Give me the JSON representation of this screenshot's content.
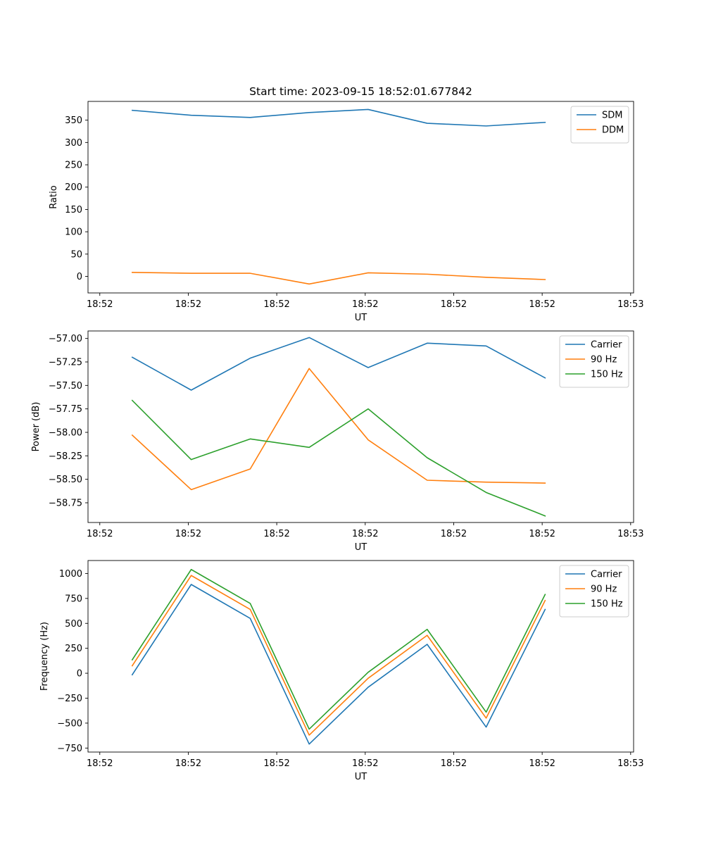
{
  "chart_data": [
    {
      "type": "line",
      "title": "Start time: 2023-09-15 18:52:01.677842",
      "xlabel": "UT",
      "ylabel": "Ratio",
      "xlim": [
        0,
        9.25
      ],
      "ylim": [
        -37,
        392
      ],
      "x": [
        0.75,
        1.75,
        2.75,
        3.75,
        4.75,
        5.75,
        6.75,
        7.75
      ],
      "xticks": [
        0.2,
        1.7,
        3.2,
        4.7,
        6.2,
        7.7,
        9.2
      ],
      "xticklabels": [
        "18:52",
        "18:52",
        "18:52",
        "18:52",
        "18:52",
        "18:52",
        "18:53"
      ],
      "yticks": [
        0,
        50,
        100,
        150,
        200,
        250,
        300,
        350
      ],
      "yticklabels": [
        "0",
        "50",
        "100",
        "150",
        "200",
        "250",
        "300",
        "350"
      ],
      "legend_position": "top-right",
      "series": [
        {
          "name": "SDM",
          "color": "#1f77b4",
          "values": [
            372,
            361,
            356,
            367,
            374,
            343,
            337,
            345
          ]
        },
        {
          "name": "DDM",
          "color": "#ff7f0e",
          "values": [
            9,
            7,
            7,
            -17,
            8,
            5,
            -2,
            -7
          ]
        }
      ]
    },
    {
      "type": "line",
      "title": "",
      "xlabel": "UT",
      "ylabel": "Power (dB)",
      "xlim": [
        0,
        9.25
      ],
      "ylim": [
        -58.96,
        -56.92
      ],
      "x": [
        0.75,
        1.75,
        2.75,
        3.75,
        4.75,
        5.75,
        6.75,
        7.75
      ],
      "xticks": [
        0.2,
        1.7,
        3.2,
        4.7,
        6.2,
        7.7,
        9.2
      ],
      "xticklabels": [
        "18:52",
        "18:52",
        "18:52",
        "18:52",
        "18:52",
        "18:52",
        "18:53"
      ],
      "yticks": [
        -57.0,
        -57.25,
        -57.5,
        -57.75,
        -58.0,
        -58.25,
        -58.5,
        -58.75
      ],
      "yticklabels": [
        "−57.00",
        "−57.25",
        "−57.50",
        "−57.75",
        "−58.00",
        "−58.25",
        "−58.50",
        "−58.75"
      ],
      "legend_position": "top-right",
      "series": [
        {
          "name": "Carrier",
          "color": "#1f77b4",
          "values": [
            -57.2,
            -57.55,
            -57.21,
            -56.99,
            -57.31,
            -57.05,
            -57.08,
            -57.42
          ]
        },
        {
          "name": "90 Hz",
          "color": "#ff7f0e",
          "values": [
            -58.03,
            -58.61,
            -58.39,
            -57.32,
            -58.08,
            -58.51,
            -58.53,
            -58.54
          ]
        },
        {
          "name": "150 Hz",
          "color": "#2ca02c",
          "values": [
            -57.66,
            -58.29,
            -58.07,
            -58.16,
            -57.75,
            -58.27,
            -58.64,
            -58.89
          ]
        }
      ]
    },
    {
      "type": "line",
      "title": "",
      "xlabel": "UT",
      "ylabel": "Frequency (Hz)",
      "xlim": [
        0,
        9.25
      ],
      "ylim": [
        -790,
        1130
      ],
      "x": [
        0.75,
        1.75,
        2.75,
        3.75,
        4.75,
        5.75,
        6.75,
        7.75
      ],
      "xticks": [
        0.2,
        1.7,
        3.2,
        4.7,
        6.2,
        7.7,
        9.2
      ],
      "xticklabels": [
        "18:52",
        "18:52",
        "18:52",
        "18:52",
        "18:52",
        "18:52",
        "18:53"
      ],
      "yticks": [
        -750,
        -500,
        -250,
        0,
        250,
        500,
        750,
        1000
      ],
      "yticklabels": [
        "−750",
        "−500",
        "−250",
        "0",
        "250",
        "500",
        "750",
        "1000"
      ],
      "legend_position": "top-right",
      "series": [
        {
          "name": "Carrier",
          "color": "#1f77b4",
          "values": [
            -15,
            890,
            550,
            -710,
            -140,
            290,
            -540,
            640
          ]
        },
        {
          "name": "90 Hz",
          "color": "#ff7f0e",
          "values": [
            75,
            980,
            640,
            -620,
            -50,
            380,
            -450,
            730
          ]
        },
        {
          "name": "150 Hz",
          "color": "#2ca02c",
          "values": [
            135,
            1040,
            700,
            -560,
            10,
            440,
            -390,
            790
          ]
        }
      ]
    }
  ]
}
